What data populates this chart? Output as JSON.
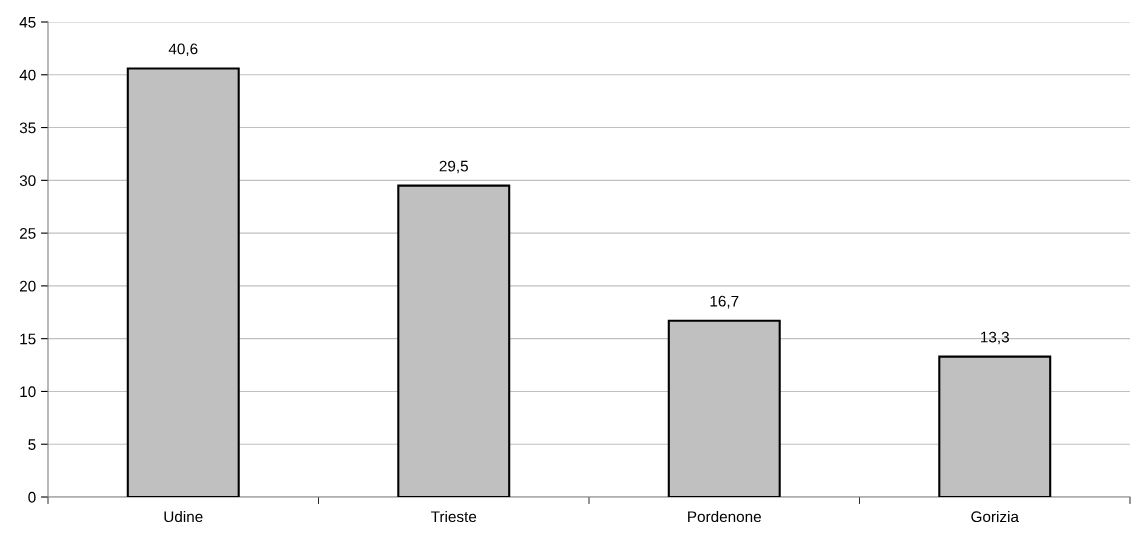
{
  "chart_data": {
    "type": "bar",
    "categories": [
      "Udine",
      "Trieste",
      "Pordenone",
      "Gorizia"
    ],
    "values": [
      40.6,
      29.5,
      16.7,
      13.3
    ],
    "value_labels": [
      "40,6",
      "29,5",
      "16,7",
      "13,3"
    ],
    "color": "#c0c0c0",
    "ylim": [
      0,
      45
    ],
    "yticks": [
      0,
      5,
      10,
      15,
      20,
      25,
      30,
      35,
      40,
      45
    ],
    "grid": "y"
  }
}
